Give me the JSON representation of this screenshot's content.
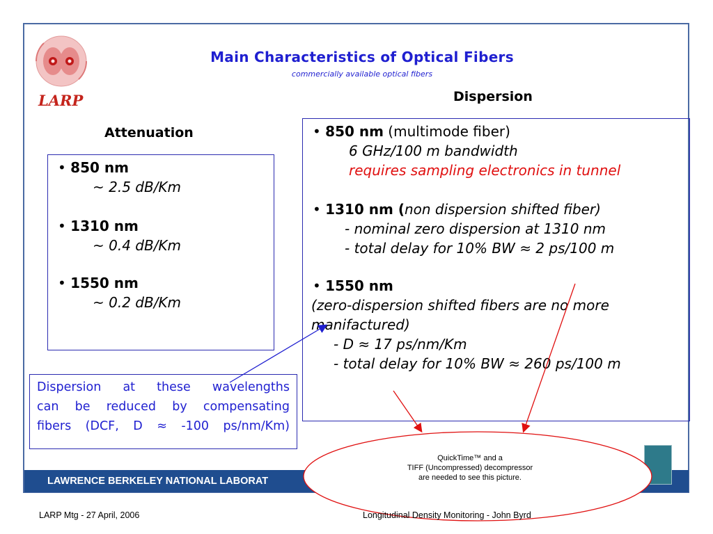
{
  "slide": {
    "title": "Main Characteristics of Optical Fibers",
    "subtitle": "commercially available optical fibers",
    "logo_text": "LARP"
  },
  "attenuation": {
    "heading": "Attenuation",
    "items": [
      {
        "label": "850 nm",
        "value": "~ 2.5 dB/Km"
      },
      {
        "label": "1310 nm",
        "value": "~ 0.4 dB/Km"
      },
      {
        "label": "1550 nm",
        "value": "~ 0.2 dB/Km"
      }
    ]
  },
  "dispersion": {
    "heading": "Dispersion",
    "item1": {
      "label": "850 nm",
      "label_suffix": " (multimode fiber)",
      "line1": "6 GHz/100 m bandwidth",
      "line2": "requires sampling electronics in tunnel"
    },
    "item2": {
      "label": "1310 nm (",
      "label_suffix": "non dispersion shifted fiber)",
      "line1": "- nominal zero dispersion at 1310 nm",
      "line2": "- total delay for 10% BW ≈ 2 ps/100 m"
    },
    "item3": {
      "label": "1550 nm",
      "line1": "(zero-dispersion shifted fibers are no more",
      "line2": "manifactured)",
      "line3": "- D ≈ 17 ps/nm/Km",
      "line4": "- total delay for 10% BW ≈ 260 ps/100 m"
    }
  },
  "note": {
    "line1": "Dispersion at these wavelengths",
    "line2": "can be reduced by compensating",
    "line3": "fibers (DCF, D ≈ -100 ps/nm/Km)"
  },
  "placeholder": {
    "line1": "QuickTime™ and a",
    "line2": "TIFF (Uncompressed) decompressor",
    "line3": "are needed to see this picture."
  },
  "footer": {
    "band_text": "LAWRENCE BERKELEY NATIONAL LABORAT",
    "left": "LARP Mtg  -  27 April, 2006",
    "right": "Longitudinal Density Monitoring  -  John Byrd"
  },
  "colors": {
    "title_blue": "#1f1fd0",
    "accent_red": "#e01010",
    "footer_band": "#1f4d8f",
    "logo_red": "#c4241c"
  }
}
